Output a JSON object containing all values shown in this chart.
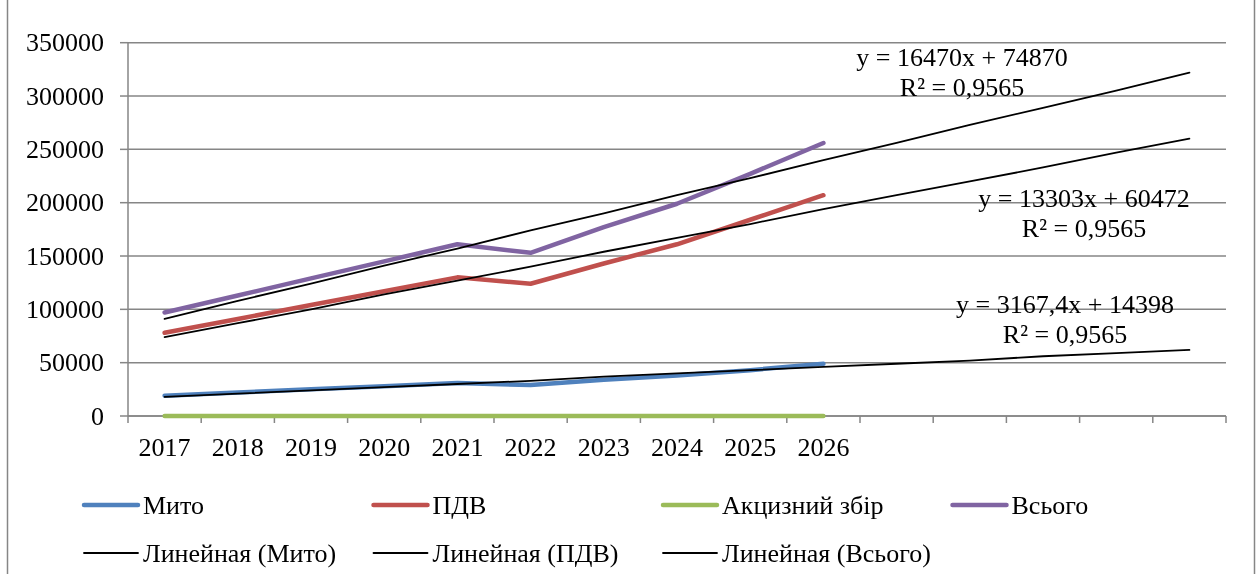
{
  "chart_data": {
    "type": "line",
    "categories": [
      "2017",
      "2018",
      "2019",
      "2020",
      "2021",
      "2022",
      "2023",
      "2024",
      "2025",
      "2026",
      null,
      null,
      null,
      null,
      null
    ],
    "series": [
      {
        "name": "Мито",
        "color": "#4f81bd",
        "values": [
          19000,
          22000,
          25000,
          28000,
          31000,
          29000,
          34000,
          38000,
          43000,
          49000,
          null,
          null,
          null,
          null,
          null
        ]
      },
      {
        "name": "ПДВ",
        "color": "#c0504d",
        "values": [
          78000,
          91000,
          104000,
          117000,
          130000,
          124000,
          143000,
          161000,
          184000,
          207000,
          null,
          null,
          null,
          null,
          null
        ]
      },
      {
        "name": "Акцизний збір",
        "color": "#9bbb59",
        "values": [
          0,
          0,
          0,
          0,
          0,
          0,
          0,
          0,
          0,
          0,
          null,
          null,
          null,
          null,
          null
        ]
      },
      {
        "name": "Всього",
        "color": "#8064a2",
        "values": [
          97000,
          113000,
          129000,
          145000,
          161000,
          153000,
          177000,
          199000,
          227000,
          256000,
          null,
          null,
          null,
          null,
          null
        ]
      },
      {
        "name": "Линейная (Мито)",
        "color": "#000000",
        "values": [
          18000,
          21000,
          24000,
          27000,
          30000,
          33000,
          37000,
          40000,
          43000,
          46000,
          49000,
          52000,
          56000,
          59000,
          62000
        ]
      },
      {
        "name": "Линейная (ПДВ)",
        "color": "#000000",
        "values": [
          74000,
          87000,
          100000,
          114000,
          127000,
          140000,
          154000,
          167000,
          180000,
          194000,
          207000,
          220000,
          233000,
          247000,
          260000
        ]
      },
      {
        "name": "Линейная (Всього)",
        "color": "#000000",
        "values": [
          91000,
          108000,
          124000,
          141000,
          157000,
          174000,
          190000,
          207000,
          223000,
          240000,
          256000,
          273000,
          289000,
          305000,
          322000
        ]
      }
    ],
    "ylim": [
      0,
      350000
    ],
    "yticks": [
      0,
      50000,
      100000,
      150000,
      200000,
      250000,
      300000,
      350000
    ],
    "grid": "y",
    "legend": "bottom",
    "annotations": [
      "y = 16470x + 74870\nR² = 0,9565",
      "y = 13303x + 60472\nR² = 0,9565",
      "y = 3167,4x + 14398\nR² = 0,9565"
    ]
  }
}
